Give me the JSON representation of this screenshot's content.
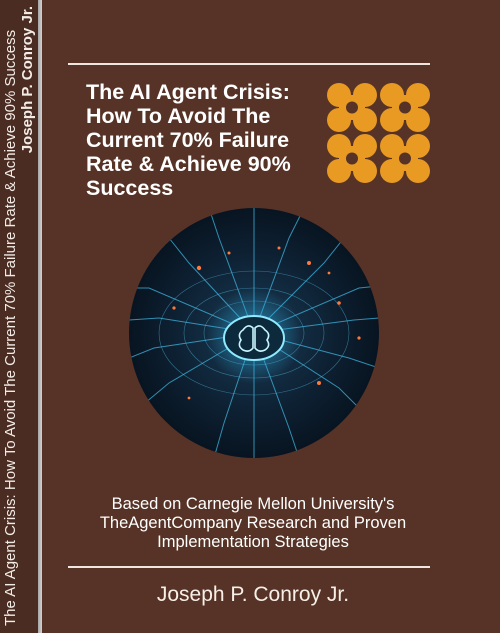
{
  "book": {
    "title": "The AI Agent Crisis: How To Avoid The Current 70% Failure Rate & Achieve 90% Success",
    "subtitle": "Based on Carnegie Mellon University's TheAgentCompany Research and Proven Implementation Strategies",
    "author": "Joseph P. Conroy Jr.",
    "spine_title": "The AI Agent Crisis: How To Avoid The Current 70% Failure Rate & Achieve 90% Success",
    "spine_author": "Joseph P. Conroy Jr.",
    "cover_illustration": "circuit-board-brain-icon",
    "logo_shape": "orange-flower-pattern-icon"
  },
  "colors": {
    "cover_background": "#563326",
    "spine_background": "#4a2c22",
    "accent_orange": "#e89a23",
    "text_light": "#ffffff"
  }
}
